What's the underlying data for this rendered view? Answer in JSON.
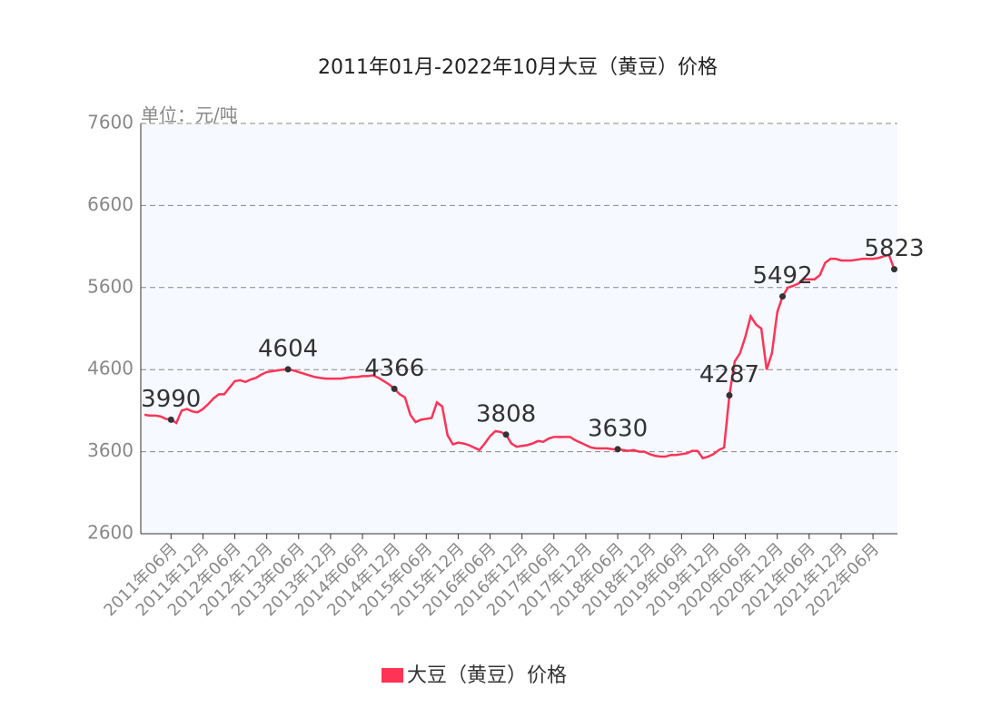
{
  "chart_data": {
    "type": "line",
    "title": "2011年01月-2022年10月大豆（黄豆）价格",
    "unit_label": "单位：元/吨",
    "categories": [
      null,
      null,
      null,
      null,
      null,
      "2011年06月",
      null,
      null,
      null,
      null,
      null,
      "2011年12月",
      null,
      null,
      null,
      null,
      null,
      "2012年06月",
      null,
      null,
      null,
      null,
      null,
      "2012年12月",
      null,
      null,
      null,
      null,
      null,
      "2013年06月",
      null,
      null,
      null,
      null,
      null,
      "2013年12月",
      null,
      null,
      null,
      null,
      null,
      "2014年06月",
      null,
      null,
      null,
      null,
      null,
      "2014年12月",
      null,
      null,
      null,
      null,
      null,
      "2015年06月",
      null,
      null,
      null,
      null,
      null,
      "2015年12月",
      null,
      null,
      null,
      null,
      null,
      "2016年06月",
      null,
      null,
      null,
      null,
      null,
      "2016年12月",
      null,
      null,
      null,
      null,
      null,
      "2017年06月",
      null,
      null,
      null,
      null,
      null,
      "2017年12月",
      null,
      null,
      null,
      null,
      null,
      "2018年06月",
      null,
      null,
      null,
      null,
      null,
      "2018年12月",
      null,
      null,
      null,
      null,
      null,
      "2019年06月",
      null,
      null,
      null,
      null,
      null,
      "2019年12月",
      null,
      null,
      null,
      null,
      null,
      "2020年06月",
      null,
      null,
      null,
      null,
      null,
      "2020年12月",
      null,
      null,
      null,
      null,
      null,
      "2021年06月",
      null,
      null,
      null,
      null,
      null,
      "2021年12月",
      null,
      null,
      null,
      null,
      null,
      "2022年06月",
      null,
      null,
      null,
      null
    ],
    "series": [
      {
        "name": "大豆（黄豆）价格",
        "color": "#ff3355",
        "values": [
          4050,
          4040,
          4040,
          4030,
          4000,
          3990,
          3950,
          4100,
          4120,
          4090,
          4080,
          4120,
          4180,
          4250,
          4300,
          4300,
          4380,
          4460,
          4470,
          4450,
          4480,
          4500,
          4540,
          4570,
          4580,
          4590,
          4600,
          4604,
          4590,
          4570,
          4550,
          4530,
          4510,
          4500,
          4490,
          4490,
          4490,
          4490,
          4500,
          4510,
          4510,
          4520,
          4520,
          4530,
          4500,
          4460,
          4420,
          4366,
          4300,
          4260,
          4050,
          3960,
          3990,
          4000,
          4010,
          4200,
          4150,
          3800,
          3690,
          3710,
          3700,
          3680,
          3650,
          3620,
          3700,
          3790,
          3850,
          3840,
          3808,
          3700,
          3660,
          3670,
          3680,
          3700,
          3730,
          3720,
          3760,
          3780,
          3780,
          3780,
          3780,
          3740,
          3710,
          3680,
          3650,
          3640,
          3640,
          3640,
          3630,
          3630,
          3620,
          3610,
          3620,
          3600,
          3600,
          3570,
          3550,
          3540,
          3540,
          3560,
          3560,
          3570,
          3580,
          3610,
          3610,
          3520,
          3540,
          3570,
          3620,
          3650,
          4287,
          4700,
          4800,
          5000,
          5250,
          5150,
          5100,
          4600,
          4800,
          5300,
          5492,
          5600,
          5620,
          5650,
          5700,
          5700,
          5700,
          5750,
          5900,
          5950,
          5950,
          5930,
          5930,
          5930,
          5940,
          5950,
          5950,
          5950,
          5960,
          5980,
          6000,
          5823
        ],
        "labeled_points": [
          5,
          27,
          47,
          68,
          89,
          110,
          120,
          141
        ]
      }
    ],
    "ylim": [
      2600,
      7600
    ],
    "yticks": [
      2600,
      3600,
      4600,
      5600,
      6600,
      7600
    ],
    "grid": true
  }
}
